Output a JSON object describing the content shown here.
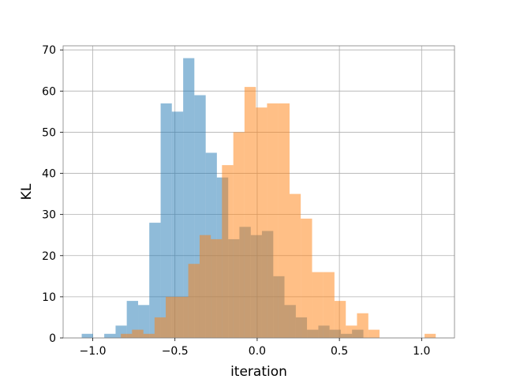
{
  "chart_data": {
    "type": "histogram",
    "title": "",
    "xlabel": "iteration",
    "ylabel": "KL",
    "xlim": [
      -1.18,
      1.2
    ],
    "ylim": [
      0,
      71
    ],
    "grid": true,
    "x_ticks": [
      {
        "value": -1.0,
        "label": "−1.0"
      },
      {
        "value": -0.5,
        "label": "−0.5"
      },
      {
        "value": 0.0,
        "label": "0.0"
      },
      {
        "value": 0.5,
        "label": "0.5"
      },
      {
        "value": 1.0,
        "label": "1.0"
      }
    ],
    "y_ticks": [
      {
        "value": 0,
        "label": "0"
      },
      {
        "value": 10,
        "label": "10"
      },
      {
        "value": 20,
        "label": "20"
      },
      {
        "value": 30,
        "label": "30"
      },
      {
        "value": 40,
        "label": "40"
      },
      {
        "value": 50,
        "label": "50"
      },
      {
        "value": 60,
        "label": "60"
      },
      {
        "value": 70,
        "label": "70"
      }
    ],
    "series": [
      {
        "color": "#1f77b4",
        "opacity": 0.5,
        "bin_edges": [
          -1.067,
          -0.998,
          -0.93,
          -0.861,
          -0.793,
          -0.724,
          -0.656,
          -0.587,
          -0.519,
          -0.45,
          -0.382,
          -0.313,
          -0.245,
          -0.176,
          -0.108,
          -0.039,
          0.029,
          0.098,
          0.166,
          0.235,
          0.303,
          0.372,
          0.44,
          0.509,
          0.577,
          0.646
        ],
        "counts": [
          1,
          0,
          1,
          3,
          9,
          8,
          28,
          57,
          55,
          68,
          59,
          45,
          39,
          24,
          27,
          25,
          26,
          15,
          8,
          5,
          2,
          3,
          2,
          1,
          2
        ]
      },
      {
        "color": "#ff7f0e",
        "opacity": 0.5,
        "bin_edges": [
          -0.829,
          -0.761,
          -0.692,
          -0.624,
          -0.556,
          -0.487,
          -0.419,
          -0.35,
          -0.282,
          -0.214,
          -0.145,
          -0.077,
          -0.008,
          0.06,
          0.128,
          0.197,
          0.265,
          0.334,
          0.402,
          0.47,
          0.539,
          0.607,
          0.676,
          0.744,
          0.812,
          0.881,
          0.949,
          1.018,
          1.086
        ],
        "counts": [
          1,
          2,
          1,
          5,
          10,
          10,
          18,
          25,
          24,
          42,
          50,
          61,
          56,
          57,
          57,
          35,
          29,
          16,
          16,
          9,
          3,
          6,
          2,
          0,
          0,
          0,
          0,
          1
        ]
      }
    ]
  }
}
